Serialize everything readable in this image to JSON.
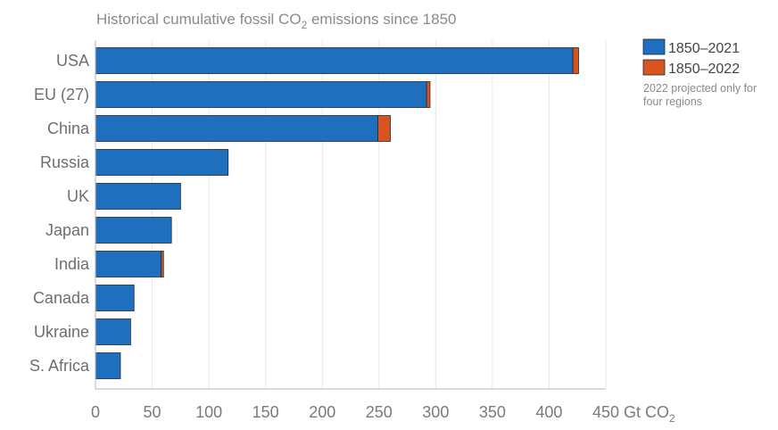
{
  "chart_data": {
    "type": "bar",
    "orientation": "horizontal",
    "stacked": true,
    "title": {
      "main": "Historical cumulative fossil CO",
      "sub": "2",
      "tail": " emissions since 1850"
    },
    "categories": [
      "USA",
      "EU (27)",
      "China",
      "Russia",
      "UK",
      "Japan",
      "India",
      "Canada",
      "Ukraine",
      "S. Africa"
    ],
    "series": [
      {
        "name": "1850–2021",
        "color": "#1f6fbf",
        "values": [
          421,
          292,
          249,
          117,
          75,
          67,
          58,
          34,
          31,
          22
        ]
      },
      {
        "name": "1850–2022",
        "color": "#d9541e",
        "values": [
          5,
          3,
          11,
          0,
          0,
          0,
          2,
          0,
          0,
          0
        ]
      }
    ],
    "xlim": [
      0,
      450
    ],
    "xticks": [
      0,
      50,
      100,
      150,
      200,
      250,
      300,
      350,
      400,
      450
    ],
    "xunit": {
      "main": "Gt CO",
      "sub": "2"
    },
    "grid": true,
    "legend_position": "top-right",
    "legend_note": [
      "2022 projected only for",
      "four regions"
    ]
  }
}
